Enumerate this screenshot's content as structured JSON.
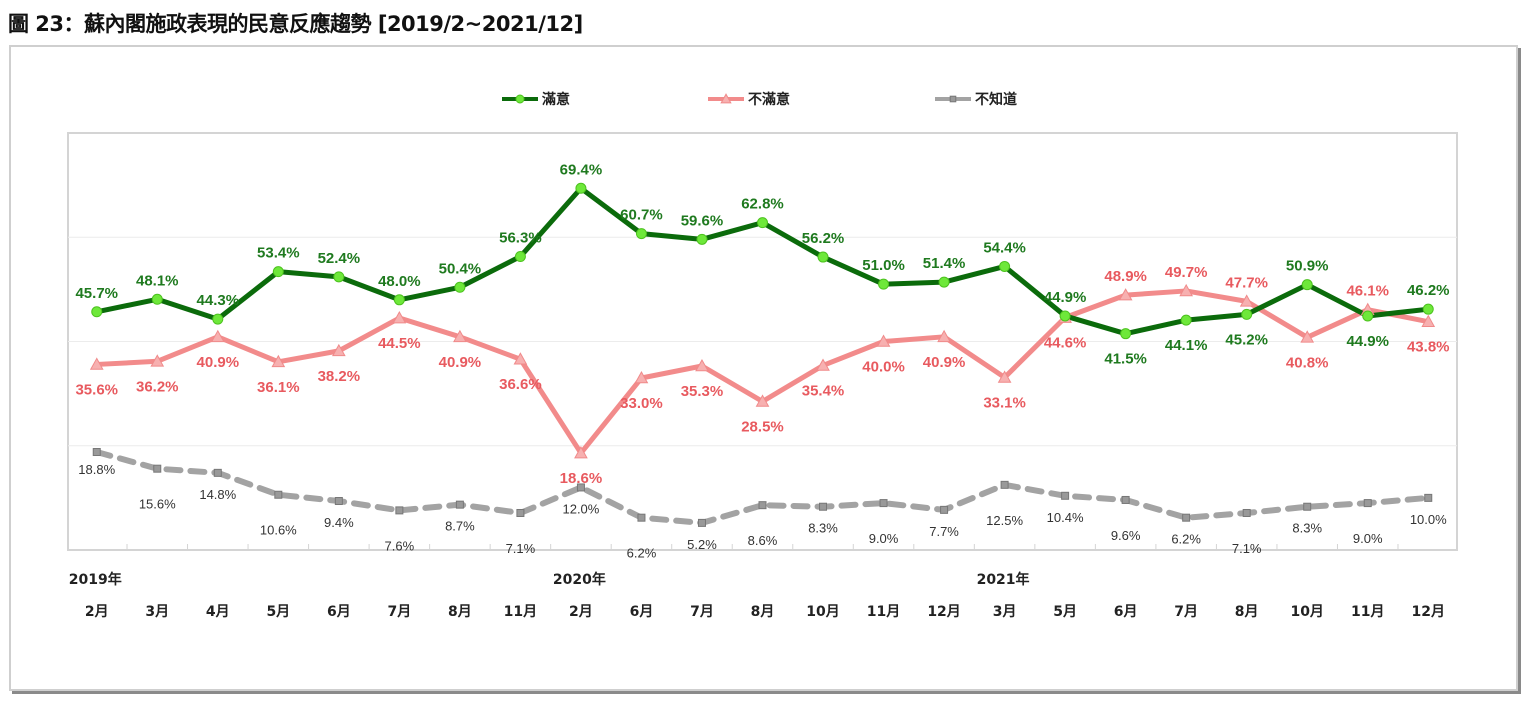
{
  "title": "圖 23：蘇內閣施政表現的民意反應趨勢  [2019/2~2021/12]",
  "chart_data": {
    "type": "line",
    "title": "圖 23：蘇內閣施政表現的民意反應趨勢  [2019/2~2021/12]",
    "xlabel": "",
    "ylabel": "",
    "ylim": [
      0,
      80
    ],
    "yticks": [
      0,
      20,
      40,
      60,
      80
    ],
    "grid": true,
    "legend_position": "top-center",
    "year_labels": [
      {
        "label": "2019年",
        "at_index": 0
      },
      {
        "label": "2020年",
        "at_index": 8
      },
      {
        "label": "2021年",
        "at_index": 15
      }
    ],
    "categories": [
      "2月",
      "3月",
      "4月",
      "5月",
      "6月",
      "7月",
      "8月",
      "11月",
      "2月",
      "6月",
      "7月",
      "8月",
      "10月",
      "11月",
      "12月",
      "3月",
      "5月",
      "6月",
      "7月",
      "8月",
      "10月",
      "11月",
      "12月"
    ],
    "series": [
      {
        "name": "滿意",
        "color": "#0b6b0b",
        "marker_color": "#6ee83a",
        "label_color": "#1f7a1f",
        "marker": "circle",
        "style": "solid",
        "values": [
          45.7,
          48.1,
          44.3,
          53.4,
          52.4,
          48.0,
          50.4,
          56.3,
          69.4,
          60.7,
          59.6,
          62.8,
          56.2,
          51.0,
          51.4,
          54.4,
          44.9,
          41.5,
          44.1,
          45.2,
          50.9,
          44.9,
          46.2
        ],
        "label_pos": [
          "a",
          "a",
          "a",
          "a",
          "a",
          "a",
          "a",
          "a",
          "a",
          "a",
          "a",
          "a",
          "a",
          "a",
          "a",
          "a",
          "a",
          "b",
          "b",
          "b",
          "a",
          "b",
          "a"
        ]
      },
      {
        "name": "不滿意",
        "color": "#f28b8b",
        "marker_color": "#f7b0b0",
        "label_color": "#e85a5f",
        "marker": "triangle",
        "style": "solid",
        "values": [
          35.6,
          36.2,
          40.9,
          36.1,
          38.2,
          44.5,
          40.9,
          36.6,
          18.6,
          33.0,
          35.3,
          28.5,
          35.4,
          40.0,
          40.9,
          33.1,
          44.6,
          48.9,
          49.7,
          47.7,
          40.8,
          46.1,
          43.8
        ],
        "label_pos": [
          "b",
          "b",
          "b",
          "b",
          "b",
          "b",
          "b",
          "b",
          "b",
          "b",
          "b",
          "b",
          "b",
          "b",
          "b",
          "b",
          "b",
          "a",
          "a",
          "a",
          "b",
          "a",
          "b"
        ]
      },
      {
        "name": "不知道",
        "color": "#a3a3a3",
        "marker_color": "#8a8a8a",
        "label_color": "#333333",
        "marker": "square",
        "style": "dashed",
        "values": [
          18.8,
          15.6,
          14.8,
          10.6,
          9.4,
          7.6,
          8.7,
          7.1,
          12.0,
          6.2,
          5.2,
          8.6,
          8.3,
          9.0,
          7.7,
          12.5,
          10.4,
          9.6,
          6.2,
          7.1,
          8.3,
          9.0,
          10.0
        ],
        "label_pos": [
          "b",
          "b",
          "b",
          "b",
          "b",
          "b",
          "b",
          "b",
          "b",
          "b",
          "b",
          "b",
          "b",
          "b",
          "b",
          "b",
          "b",
          "b",
          "b",
          "b",
          "b",
          "b",
          "b"
        ]
      }
    ]
  }
}
